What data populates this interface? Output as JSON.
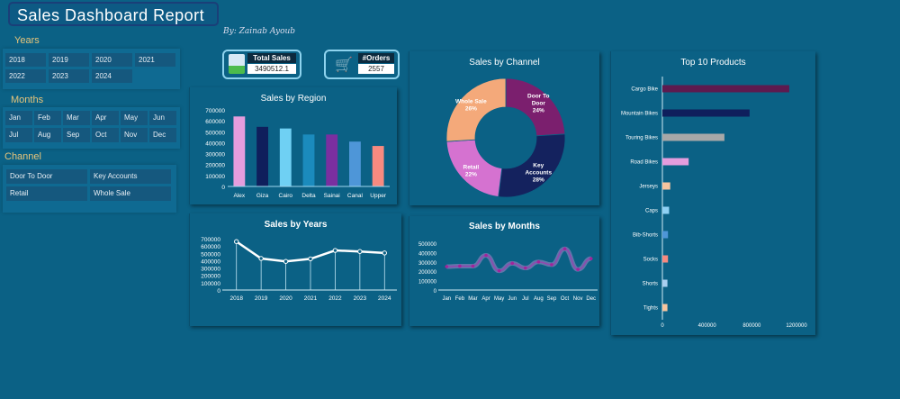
{
  "header": {
    "title": "Sales Dashboard Report",
    "signature": "By: Zainab Ayoub"
  },
  "filters": {
    "years_label": "Years",
    "years": [
      "2018",
      "2019",
      "2020",
      "2021",
      "2022",
      "2023",
      "2024"
    ],
    "months_label": "Months",
    "months": [
      "Jan",
      "Feb",
      "Mar",
      "Apr",
      "May",
      "Jun",
      "Jul",
      "Aug",
      "Sep",
      "Oct",
      "Nov",
      "Dec"
    ],
    "channel_label": "Channel",
    "channels": [
      "Door To Door",
      "Key Accounts",
      "Retail",
      "Whole Sale"
    ]
  },
  "kpis": {
    "total_sales_label": "Total Sales",
    "total_sales": "3490512.1",
    "orders_label": "#Orders",
    "orders": "2557"
  },
  "colors": {
    "background": "#0b6185",
    "panel": "#0f6a92",
    "button": "#15587e",
    "label": "#e8c57a"
  },
  "chart_data": [
    {
      "id": "region",
      "type": "bar",
      "title": "Sales by Region",
      "categories": [
        "Alex",
        "Giza",
        "Cairo",
        "Delta",
        "Sainai",
        "Canal",
        "Upper"
      ],
      "values": [
        640000,
        545000,
        530000,
        475000,
        475000,
        410000,
        370000
      ],
      "colors": [
        "#e59ddd",
        "#0f1f5c",
        "#6fd0f3",
        "#1b8bbd",
        "#7a2fa0",
        "#4e96d8",
        "#f78a80"
      ],
      "yticks": [
        0,
        100000,
        200000,
        300000,
        400000,
        500000,
        600000,
        700000
      ],
      "ylim": [
        0,
        700000
      ]
    },
    {
      "id": "channel",
      "type": "pie",
      "title": "Sales by Channel",
      "categories": [
        "Door To Door",
        "Key Accounts",
        "Retail",
        "Whole Sale"
      ],
      "values": [
        24,
        28,
        22,
        26
      ],
      "labels": [
        "24%",
        "28%",
        "22%",
        "26%"
      ],
      "colors": [
        "#7b1f6e",
        "#14225e",
        "#d572d0",
        "#f4a97a"
      ]
    },
    {
      "id": "years",
      "type": "line",
      "title": "Sales by Years",
      "categories": [
        "2018",
        "2019",
        "2020",
        "2021",
        "2022",
        "2023",
        "2024"
      ],
      "values": [
        660000,
        430000,
        390000,
        425000,
        540000,
        525000,
        505000
      ],
      "yticks": [
        0,
        100000,
        200000,
        300000,
        400000,
        500000,
        600000,
        700000
      ],
      "ylim": [
        0,
        700000
      ]
    },
    {
      "id": "months",
      "type": "line",
      "title": "Sales by Months",
      "categories": [
        "Jan",
        "Feb",
        "Mar",
        "Apr",
        "May",
        "Jun",
        "Jul",
        "Aug",
        "Sep",
        "Oct",
        "Nov",
        "Dec"
      ],
      "values": [
        250000,
        255000,
        255000,
        370000,
        205000,
        285000,
        235000,
        300000,
        270000,
        440000,
        220000,
        335000
      ],
      "yticks": [
        0,
        100000,
        200000,
        300000,
        400000,
        500000
      ],
      "ylim": [
        0,
        500000
      ]
    },
    {
      "id": "products",
      "type": "bar",
      "orientation": "horizontal",
      "title": "Top 10 Products",
      "categories": [
        "Cargo Bike",
        "Mountain Bikes",
        "Touring Bikes",
        "Road Bikes",
        "Jerseys",
        "Caps",
        "Bib-Shorts",
        "Socks",
        "Shorts",
        "Tights"
      ],
      "values": [
        1135000,
        780000,
        555000,
        235000,
        70000,
        60000,
        50000,
        50000,
        45000,
        45000
      ],
      "colors": [
        "#5e1a4f",
        "#0f1f5c",
        "#a8a8a8",
        "#e59ddd",
        "#f7c59f",
        "#8fd0f3",
        "#4e96d8",
        "#f78a80",
        "#a9cff0",
        "#f7c59f"
      ],
      "xticks": [
        0,
        400000,
        800000,
        1200000
      ],
      "xlim": [
        0,
        1200000
      ]
    }
  ]
}
